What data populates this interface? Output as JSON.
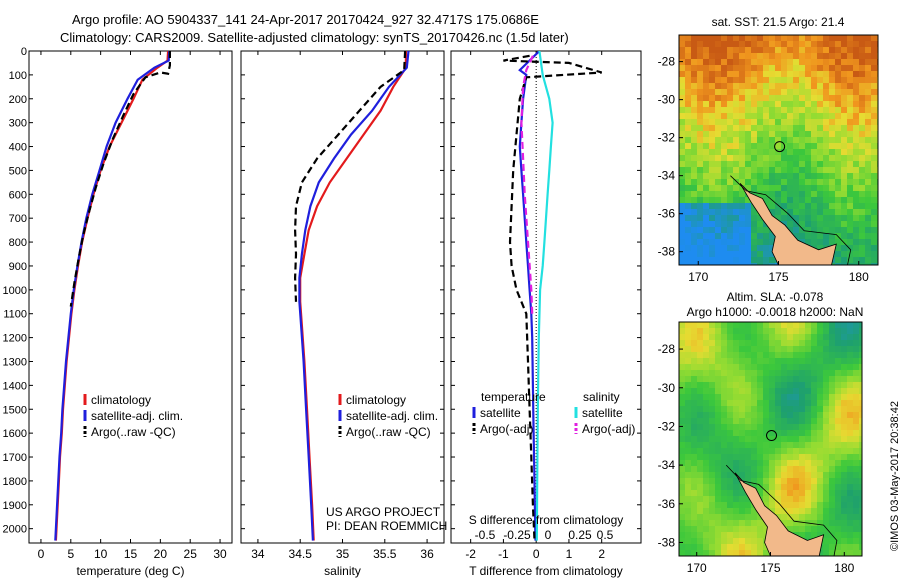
{
  "header": {
    "line1": "Argo profile: AO 5904337_141 24-Apr-2017 20170424_927 32.4717S 175.0686E",
    "line2": "Climatology: CARS2009. Satellite-adjusted climatology: synTS_20170426.nc (1.5d later)"
  },
  "colors": {
    "climatology": "#e31a1c",
    "satellite": "#1f1fdd",
    "argo": "#000000",
    "sal_satellite": "#22e0e0",
    "sal_argo": "#e020e0"
  },
  "chart_data": [
    {
      "type": "line",
      "xlabel": "temperature (deg C)",
      "ylabel": "",
      "xlim": [
        -2,
        32
      ],
      "ylim": [
        2060,
        0
      ],
      "xticks": [
        0,
        5,
        10,
        15,
        20,
        25,
        30
      ],
      "yticks": [
        0,
        100,
        200,
        300,
        400,
        500,
        600,
        700,
        800,
        900,
        1000,
        1100,
        1200,
        1300,
        1400,
        1500,
        1600,
        1700,
        1800,
        1900,
        2000
      ],
      "legend": [
        "climatology",
        "satellite-adj. clim.",
        "Argo(..raw -QC)"
      ],
      "series": [
        {
          "name": "climatology",
          "style": "solid",
          "color": "#e31a1c",
          "points": [
            [
              21.3,
              0
            ],
            [
              21.2,
              40
            ],
            [
              19.5,
              70
            ],
            [
              17,
              120
            ],
            [
              15.5,
              200
            ],
            [
              13.5,
              300
            ],
            [
              11.5,
              400
            ],
            [
              10,
              500
            ],
            [
              8.8,
              600
            ],
            [
              7.8,
              700
            ],
            [
              6.9,
              800
            ],
            [
              6.2,
              900
            ],
            [
              5.6,
              1000
            ],
            [
              5.1,
              1100
            ],
            [
              4.7,
              1200
            ],
            [
              4.3,
              1300
            ],
            [
              4.0,
              1400
            ],
            [
              3.7,
              1500
            ],
            [
              3.5,
              1600
            ],
            [
              3.2,
              1700
            ],
            [
              3.0,
              1800
            ],
            [
              2.8,
              1900
            ],
            [
              2.6,
              2000
            ],
            [
              2.5,
              2050
            ]
          ]
        },
        {
          "name": "satellite-adj. clim.",
          "style": "solid",
          "color": "#1f1fdd",
          "points": [
            [
              21.5,
              0
            ],
            [
              21.4,
              40
            ],
            [
              19,
              70
            ],
            [
              16.2,
              120
            ],
            [
              14.5,
              200
            ],
            [
              12.5,
              300
            ],
            [
              11,
              400
            ],
            [
              9.8,
              500
            ],
            [
              8.6,
              600
            ],
            [
              7.6,
              700
            ],
            [
              6.8,
              800
            ],
            [
              6.1,
              900
            ],
            [
              5.5,
              1000
            ],
            [
              5.0,
              1100
            ],
            [
              4.6,
              1200
            ],
            [
              4.2,
              1300
            ],
            [
              3.9,
              1400
            ],
            [
              3.6,
              1500
            ],
            [
              3.4,
              1600
            ],
            [
              3.1,
              1700
            ],
            [
              2.9,
              1800
            ],
            [
              2.7,
              1900
            ],
            [
              2.5,
              2000
            ],
            [
              2.4,
              2050
            ]
          ]
        },
        {
          "name": "Argo(..raw -QC)",
          "style": "dash",
          "color": "#000000",
          "points": [
            [
              21.6,
              0
            ],
            [
              21.6,
              60
            ],
            [
              21.3,
              95
            ],
            [
              20,
              90
            ],
            [
              17.5,
              110
            ],
            [
              15.5,
              180
            ],
            [
              13.8,
              270
            ],
            [
              12,
              370
            ],
            [
              10.5,
              470
            ],
            [
              9.2,
              570
            ],
            [
              8.1,
              670
            ],
            [
              7.1,
              770
            ],
            [
              6.3,
              870
            ],
            [
              5.6,
              970
            ],
            [
              5.0,
              1070
            ]
          ]
        }
      ]
    },
    {
      "type": "line",
      "xlabel": "salinity",
      "xlim": [
        33.8,
        36.2
      ],
      "ylim": [
        2060,
        0
      ],
      "xticks": [
        34,
        34.5,
        35,
        35.5,
        36
      ],
      "legend": [
        "climatology",
        "satellite-adj. clim.",
        "Argo(..raw -QC)"
      ],
      "annotation": [
        "US ARGO PROJECT",
        "PI: DEAN ROEMMICH"
      ],
      "series": [
        {
          "name": "climatology",
          "style": "solid",
          "color": "#e31a1c",
          "points": [
            [
              35.75,
              0
            ],
            [
              35.75,
              70
            ],
            [
              35.6,
              150
            ],
            [
              35.45,
              250
            ],
            [
              35.25,
              350
            ],
            [
              35.05,
              450
            ],
            [
              34.85,
              550
            ],
            [
              34.7,
              650
            ],
            [
              34.6,
              750
            ],
            [
              34.55,
              850
            ],
            [
              34.5,
              950
            ],
            [
              34.5,
              1050
            ],
            [
              34.52,
              1150
            ],
            [
              34.55,
              1300
            ],
            [
              34.58,
              1500
            ],
            [
              34.61,
              1700
            ],
            [
              34.64,
              1900
            ],
            [
              34.66,
              2050
            ]
          ]
        },
        {
          "name": "satellite-adj. clim.",
          "style": "solid",
          "color": "#1f1fdd",
          "points": [
            [
              35.78,
              0
            ],
            [
              35.76,
              70
            ],
            [
              35.55,
              150
            ],
            [
              35.35,
              250
            ],
            [
              35.1,
              350
            ],
            [
              34.9,
              450
            ],
            [
              34.72,
              550
            ],
            [
              34.62,
              650
            ],
            [
              34.56,
              750
            ],
            [
              34.52,
              850
            ],
            [
              34.49,
              950
            ],
            [
              34.49,
              1050
            ],
            [
              34.51,
              1150
            ],
            [
              34.54,
              1300
            ],
            [
              34.57,
              1500
            ],
            [
              34.6,
              1700
            ],
            [
              34.63,
              1900
            ],
            [
              34.65,
              2050
            ]
          ]
        },
        {
          "name": "Argo(..raw -QC)",
          "style": "dash",
          "color": "#000000",
          "points": [
            [
              35.74,
              0
            ],
            [
              35.73,
              80
            ],
            [
              35.45,
              150
            ],
            [
              35.2,
              250
            ],
            [
              34.95,
              350
            ],
            [
              34.7,
              450
            ],
            [
              34.52,
              550
            ],
            [
              34.45,
              650
            ],
            [
              34.44,
              750
            ],
            [
              34.45,
              850
            ],
            [
              34.44,
              950
            ],
            [
              34.45,
              1050
            ]
          ]
        }
      ]
    },
    {
      "type": "line",
      "xlabel": "T difference from climatology",
      "xlim": [
        -2.6,
        3.2
      ],
      "ylim": [
        2060,
        0
      ],
      "xticks": [
        -2,
        -1,
        0,
        1,
        2
      ],
      "x2label": "S difference from climatology",
      "x2ticks": [
        "-0.5",
        "-0.25",
        "0",
        "0.25",
        "0.5"
      ],
      "legend_temperature": [
        "temperature",
        "satellite",
        "Argo(-adj)"
      ],
      "legend_salinity": [
        "salinity",
        "satellite",
        "Argo(-adj)"
      ],
      "series": [
        {
          "name": "temperature satellite",
          "style": "solid",
          "color": "#1f1fdd",
          "points": [
            [
              0.1,
              0
            ],
            [
              -0.5,
              80
            ],
            [
              -0.3,
              100
            ],
            [
              -0.4,
              200
            ],
            [
              -0.45,
              300
            ],
            [
              -0.5,
              400
            ],
            [
              -0.45,
              500
            ],
            [
              -0.4,
              600
            ],
            [
              -0.35,
              700
            ],
            [
              -0.3,
              800
            ],
            [
              -0.25,
              900
            ],
            [
              -0.2,
              1000
            ],
            [
              -0.15,
              1100
            ],
            [
              -0.12,
              1200
            ],
            [
              -0.1,
              1400
            ],
            [
              -0.08,
              1600
            ],
            [
              -0.05,
              1800
            ],
            [
              -0.03,
              2000
            ],
            [
              -0.02,
              2050
            ]
          ]
        },
        {
          "name": "temperature Argo(-adj)",
          "style": "dash",
          "color": "#000000",
          "points": [
            [
              -0.2,
              20
            ],
            [
              -1.0,
              40
            ],
            [
              1.0,
              50
            ],
            [
              2.0,
              90
            ],
            [
              -0.3,
              110
            ],
            [
              -0.5,
              200
            ],
            [
              -0.6,
              350
            ],
            [
              -0.7,
              500
            ],
            [
              -0.75,
              650
            ],
            [
              -0.8,
              800
            ],
            [
              -0.75,
              900
            ],
            [
              -0.6,
              1000
            ],
            [
              -0.3,
              1100
            ],
            [
              -0.25,
              1300
            ],
            [
              -0.2,
              1500
            ],
            [
              -0.15,
              1700
            ],
            [
              -0.1,
              1900
            ],
            [
              -0.05,
              2050
            ]
          ]
        },
        {
          "name": "salinity satellite",
          "style": "solid",
          "color": "#22e0e0",
          "points": [
            [
              0.1,
              0
            ],
            [
              0.2,
              100
            ],
            [
              0.4,
              200
            ],
            [
              0.5,
              300
            ],
            [
              0.45,
              400
            ],
            [
              0.4,
              500
            ],
            [
              0.35,
              600
            ],
            [
              0.3,
              700
            ],
            [
              0.25,
              800
            ],
            [
              0.2,
              900
            ],
            [
              0.12,
              1000
            ],
            [
              0.08,
              1200
            ],
            [
              0.05,
              1500
            ],
            [
              0.03,
              1800
            ],
            [
              0.02,
              2050
            ]
          ]
        },
        {
          "name": "salinity Argo(-adj)",
          "style": "dash",
          "color": "#e020e0",
          "points": [
            [
              -0.1,
              20
            ],
            [
              -0.3,
              80
            ],
            [
              -0.4,
              150
            ],
            [
              -0.45,
              300
            ],
            [
              -0.4,
              450
            ],
            [
              -0.35,
              600
            ],
            [
              -0.25,
              800
            ],
            [
              -0.15,
              1000
            ],
            [
              -0.12,
              1100
            ]
          ]
        }
      ]
    },
    {
      "type": "heatmap",
      "title": "sat. SST: 21.5 Argo: 21.4",
      "xticks": [
        170,
        175,
        180
      ],
      "yticks": [
        -28,
        -30,
        -32,
        -34,
        -36,
        -38
      ],
      "xlim": [
        168.8,
        181.2
      ],
      "ylim": [
        -38.7,
        -26.6
      ],
      "marker": [
        175.07,
        -32.47
      ]
    },
    {
      "type": "heatmap",
      "title_line1": "Altim. SLA: -0.078",
      "title_line2": "Argo h1000: -0.0018 h2000: NaN",
      "xticks": [
        170,
        175,
        180
      ],
      "yticks": [
        -28,
        -30,
        -32,
        -34,
        -36,
        -38
      ],
      "xlim": [
        168.8,
        181.2
      ],
      "ylim": [
        -38.7,
        -26.6
      ],
      "marker": [
        175.07,
        -32.47
      ]
    }
  ],
  "credit": "©IMOS 03-May-2017 20:38:42"
}
